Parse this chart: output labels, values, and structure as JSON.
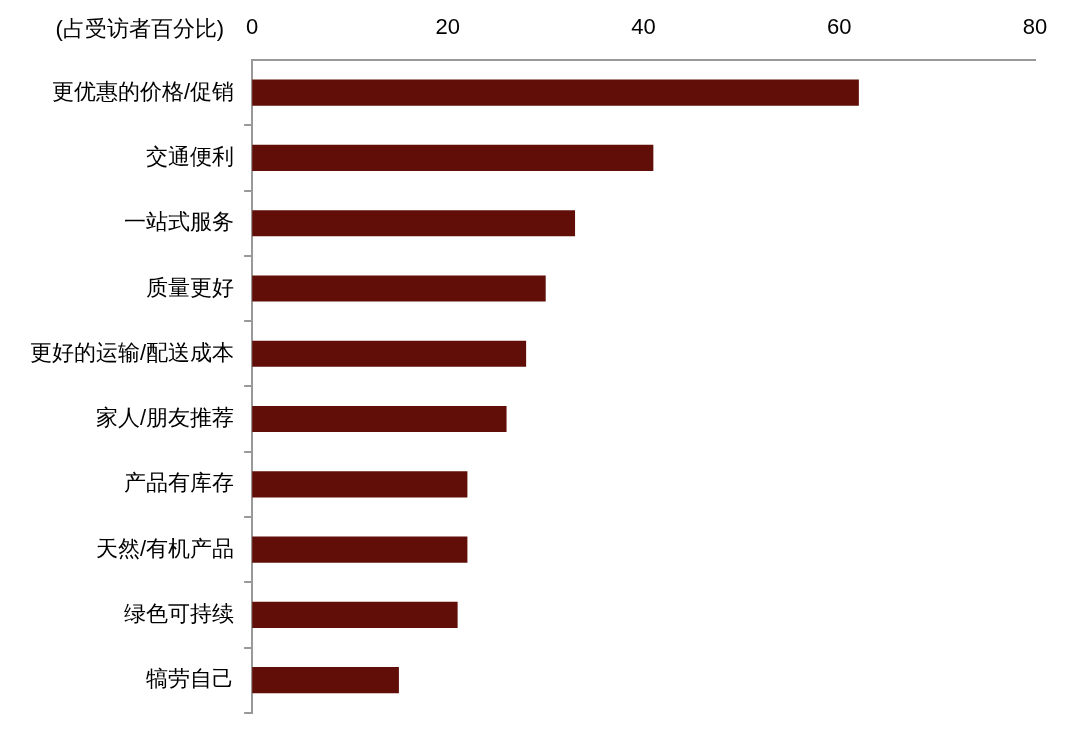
{
  "chart_data": {
    "type": "bar",
    "orientation": "horizontal",
    "xlabel": "(占受访者百分比)",
    "categories": [
      "更优惠的价格/促销",
      "交通便利",
      "一站式服务",
      "质量更好",
      "更好的运输/配送成本",
      "家人/朋友推荐",
      "产品有库存",
      "天然/有机产品",
      "绿色可持续",
      "犒劳自己"
    ],
    "values": [
      62,
      41,
      33,
      30,
      28,
      26,
      22,
      22,
      21,
      15
    ],
    "color": "#600e07",
    "xlim": [
      0,
      80
    ],
    "xticks": [
      0,
      20,
      40,
      60,
      80
    ],
    "grid": false,
    "legend": false
  }
}
